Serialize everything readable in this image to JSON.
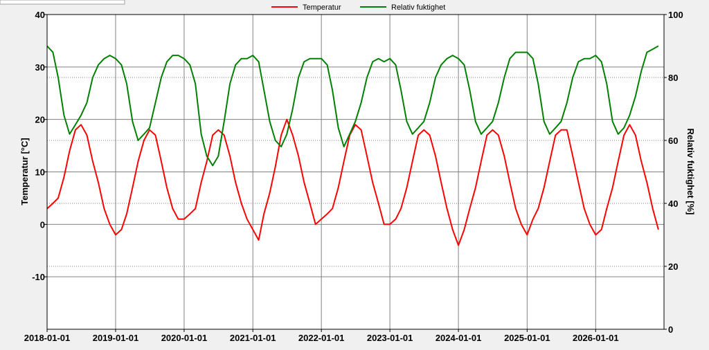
{
  "chart_data": {
    "type": "line",
    "title": "",
    "xlabel": "",
    "ylabel": "Temperatur [°C]",
    "y2label": "Relativ fuktighet [%]",
    "x_range": [
      "2018-01-01",
      "2026-12-31"
    ],
    "ylim": [
      -20,
      40
    ],
    "y2lim": [
      0,
      100
    ],
    "x_ticks": [
      "2018-01-01",
      "2019-01-01",
      "2020-01-01",
      "2021-01-01",
      "2022-01-01",
      "2023-01-01",
      "2024-01-01",
      "2025-01-01",
      "2026-01-01"
    ],
    "y_ticks": [
      "40",
      "30",
      "20",
      "10",
      "0",
      "-10"
    ],
    "y2_ticks": [
      "100",
      "80",
      "60",
      "40",
      "20",
      "0"
    ],
    "grid": true,
    "legend_position": "top",
    "series": [
      {
        "name": "Temperatur",
        "axis": "left",
        "color": "#ff0000",
        "x": [
          "2018-01-01",
          "2018-02-01",
          "2018-03-01",
          "2018-04-01",
          "2018-05-01",
          "2018-06-01",
          "2018-07-01",
          "2018-08-01",
          "2018-09-01",
          "2018-10-01",
          "2018-11-01",
          "2018-12-01",
          "2019-01-01",
          "2019-02-01",
          "2019-03-01",
          "2019-04-01",
          "2019-05-01",
          "2019-06-01",
          "2019-07-01",
          "2019-08-01",
          "2019-09-01",
          "2019-10-01",
          "2019-11-01",
          "2019-12-01",
          "2020-01-01",
          "2020-02-01",
          "2020-03-01",
          "2020-04-01",
          "2020-05-01",
          "2020-06-01",
          "2020-07-01",
          "2020-08-01",
          "2020-09-01",
          "2020-10-01",
          "2020-11-01",
          "2020-12-01",
          "2021-01-01",
          "2021-02-01",
          "2021-03-01",
          "2021-04-01",
          "2021-05-01",
          "2021-06-01",
          "2021-07-01",
          "2021-08-01",
          "2021-09-01",
          "2021-10-01",
          "2021-11-01",
          "2021-12-01",
          "2022-01-01",
          "2022-02-01",
          "2022-03-01",
          "2022-04-01",
          "2022-05-01",
          "2022-06-01",
          "2022-07-01",
          "2022-08-01",
          "2022-09-01",
          "2022-10-01",
          "2022-11-01",
          "2022-12-01",
          "2023-01-01",
          "2023-02-01",
          "2023-03-01",
          "2023-04-01",
          "2023-05-01",
          "2023-06-01",
          "2023-07-01",
          "2023-08-01",
          "2023-09-01",
          "2023-10-01",
          "2023-11-01",
          "2023-12-01",
          "2024-01-01",
          "2024-02-01",
          "2024-03-01",
          "2024-04-01",
          "2024-05-01",
          "2024-06-01",
          "2024-07-01",
          "2024-08-01",
          "2024-09-01",
          "2024-10-01",
          "2024-11-01",
          "2024-12-01",
          "2025-01-01",
          "2025-02-01",
          "2025-03-01",
          "2025-04-01",
          "2025-05-01",
          "2025-06-01",
          "2025-07-01",
          "2025-08-01",
          "2025-09-01",
          "2025-10-01",
          "2025-11-01",
          "2025-12-01",
          "2026-01-01",
          "2026-02-01",
          "2026-03-01",
          "2026-04-01",
          "2026-05-01",
          "2026-06-01",
          "2026-07-01",
          "2026-08-01",
          "2026-09-01",
          "2026-10-01",
          "2026-11-01",
          "2026-12-01"
        ],
        "y": [
          3,
          4,
          5,
          9,
          14,
          18,
          19,
          17,
          12,
          8,
          3,
          0,
          -2,
          -1,
          2,
          7,
          12,
          16,
          18,
          17,
          12,
          7,
          3,
          1,
          1,
          2,
          3,
          8,
          12,
          17,
          18,
          17,
          13,
          8,
          4,
          1,
          -1,
          -3,
          2,
          6,
          11,
          17,
          20,
          17,
          13,
          8,
          4,
          0,
          1,
          2,
          3,
          7,
          12,
          17,
          19,
          18,
          13,
          8,
          4,
          0,
          0,
          1,
          3,
          7,
          12,
          17,
          18,
          17,
          13,
          8,
          3,
          -1,
          -4,
          -1,
          3,
          7,
          12,
          17,
          18,
          17,
          13,
          8,
          3,
          0,
          -2,
          1,
          3,
          7,
          12,
          17,
          18,
          18,
          13,
          8,
          3,
          0,
          -2,
          -1,
          3,
          7,
          12,
          17,
          19,
          17,
          12,
          8,
          3,
          -1
        ]
      },
      {
        "name": "Relativ fuktighet",
        "axis": "right",
        "color": "#008000",
        "x": [
          "2018-01-01",
          "2018-02-01",
          "2018-03-01",
          "2018-04-01",
          "2018-05-01",
          "2018-06-01",
          "2018-07-01",
          "2018-08-01",
          "2018-09-01",
          "2018-10-01",
          "2018-11-01",
          "2018-12-01",
          "2019-01-01",
          "2019-02-01",
          "2019-03-01",
          "2019-04-01",
          "2019-05-01",
          "2019-06-01",
          "2019-07-01",
          "2019-08-01",
          "2019-09-01",
          "2019-10-01",
          "2019-11-01",
          "2019-12-01",
          "2020-01-01",
          "2020-02-01",
          "2020-03-01",
          "2020-04-01",
          "2020-05-01",
          "2020-06-01",
          "2020-07-01",
          "2020-08-01",
          "2020-09-01",
          "2020-10-01",
          "2020-11-01",
          "2020-12-01",
          "2021-01-01",
          "2021-02-01",
          "2021-03-01",
          "2021-04-01",
          "2021-05-01",
          "2021-06-01",
          "2021-07-01",
          "2021-08-01",
          "2021-09-01",
          "2021-10-01",
          "2021-11-01",
          "2021-12-01",
          "2022-01-01",
          "2022-02-01",
          "2022-03-01",
          "2022-04-01",
          "2022-05-01",
          "2022-06-01",
          "2022-07-01",
          "2022-08-01",
          "2022-09-01",
          "2022-10-01",
          "2022-11-01",
          "2022-12-01",
          "2023-01-01",
          "2023-02-01",
          "2023-03-01",
          "2023-04-01",
          "2023-05-01",
          "2023-06-01",
          "2023-07-01",
          "2023-08-01",
          "2023-09-01",
          "2023-10-01",
          "2023-11-01",
          "2023-12-01",
          "2024-01-01",
          "2024-02-01",
          "2024-03-01",
          "2024-04-01",
          "2024-05-01",
          "2024-06-01",
          "2024-07-01",
          "2024-08-01",
          "2024-09-01",
          "2024-10-01",
          "2024-11-01",
          "2024-12-01",
          "2025-01-01",
          "2025-02-01",
          "2025-03-01",
          "2025-04-01",
          "2025-05-01",
          "2025-06-01",
          "2025-07-01",
          "2025-08-01",
          "2025-09-01",
          "2025-10-01",
          "2025-11-01",
          "2025-12-01",
          "2026-01-01",
          "2026-02-01",
          "2026-03-01",
          "2026-04-01",
          "2026-05-01",
          "2026-06-01",
          "2026-07-01",
          "2026-08-01",
          "2026-09-01",
          "2026-10-01",
          "2026-11-01",
          "2026-12-01"
        ],
        "y": [
          90,
          88,
          80,
          68,
          62,
          65,
          68,
          72,
          80,
          84,
          86,
          87,
          86,
          84,
          78,
          66,
          60,
          62,
          64,
          72,
          80,
          85,
          87,
          87,
          86,
          84,
          78,
          62,
          55,
          52,
          55,
          66,
          78,
          84,
          86,
          86,
          87,
          85,
          76,
          66,
          60,
          58,
          62,
          70,
          80,
          85,
          86,
          86,
          86,
          84,
          76,
          64,
          58,
          62,
          66,
          72,
          80,
          85,
          86,
          85,
          86,
          84,
          76,
          66,
          62,
          64,
          66,
          72,
          80,
          84,
          86,
          87,
          86,
          84,
          76,
          66,
          62,
          64,
          66,
          72,
          80,
          86,
          88,
          88,
          88,
          86,
          78,
          66,
          62,
          64,
          66,
          72,
          80,
          85,
          86,
          86,
          87,
          85,
          78,
          66,
          62,
          64,
          68,
          74,
          82,
          88,
          89,
          90
        ]
      }
    ]
  }
}
